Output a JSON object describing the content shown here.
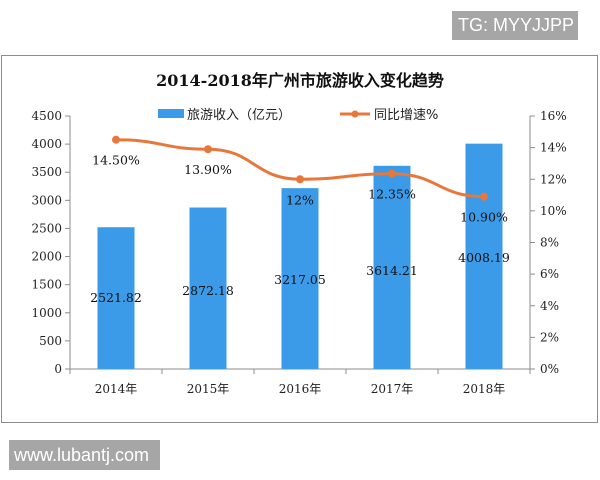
{
  "watermark_tags": {
    "top": "TG: MYYJJPP",
    "bottom": "www.lubantj.com"
  },
  "colors": {
    "bar": "#3c9be8",
    "line": "#e8773a",
    "axis": "#8c8c8c",
    "tag_bg": "#a6a6a6"
  },
  "chart_data": {
    "type": "bar+line",
    "title": "2014-2018年广州市旅游收入变化趋势",
    "categories": [
      "2014年",
      "2015年",
      "2016年",
      "2017年",
      "2018年"
    ],
    "series": [
      {
        "name": "旅游收入（亿元）",
        "type": "bar",
        "axis": "left",
        "values": [
          2521.82,
          2872.18,
          3217.05,
          3614.21,
          4008.19
        ],
        "labels": [
          "2521.82",
          "2872.18",
          "3217.05",
          "3614.21",
          "4008.19"
        ]
      },
      {
        "name": "同比增速%",
        "type": "line",
        "axis": "right",
        "values": [
          14.5,
          13.9,
          12.0,
          12.35,
          10.9
        ],
        "labels": [
          "14.50%",
          "13.90%",
          "12%",
          "12.35%",
          "10.90%"
        ]
      }
    ],
    "left_axis": {
      "ylim": [
        0,
        4500
      ],
      "ticks": [
        "4500",
        "4000",
        "3500",
        "3000",
        "2500",
        "2000",
        "1500",
        "1000",
        "500",
        "0"
      ]
    },
    "right_axis": {
      "ylim": [
        0,
        16
      ],
      "ticks": [
        "16%",
        "14%",
        "12%",
        "10%",
        "8%",
        "6%",
        "4%",
        "2%",
        "0%"
      ]
    },
    "legend": {
      "position": "top",
      "items": [
        "旅游收入（亿元）",
        "同比增速%"
      ]
    },
    "grid": false,
    "xlabel": "",
    "ylabel": ""
  }
}
